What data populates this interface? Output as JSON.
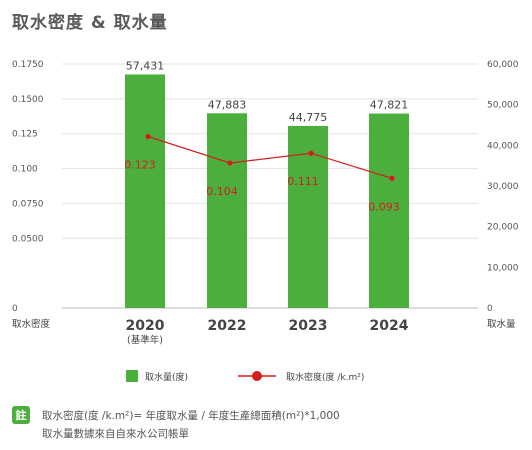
{
  "title": "取水密度 & 取水量",
  "chart_data": {
    "type": "bar+line",
    "categories": [
      "2020",
      "2022",
      "2023",
      "2024"
    ],
    "category_sublabels": [
      "(基準年)",
      "",
      "",
      ""
    ],
    "series": [
      {
        "name": "取水量(度)",
        "type": "bar",
        "axis": "right",
        "values": [
          57431,
          47883,
          44775,
          47821
        ],
        "labels": [
          "57,431",
          "47,883",
          "44,775",
          "47,821"
        ],
        "color": "#4caf3d"
      },
      {
        "name": "取水密度(度 /k.m²)",
        "type": "line",
        "axis": "left",
        "values": [
          0.123,
          0.104,
          0.111,
          0.093
        ],
        "labels": [
          "0.123",
          "0.104",
          "0.111",
          "0.093"
        ],
        "color": "#d11f1f"
      }
    ],
    "left_axis": {
      "label": "取水密度",
      "ylim": [
        0,
        0.175
      ],
      "ticks": [
        "0",
        "0.0500",
        "0.0750",
        "0.100",
        "0.125",
        "0.1500",
        "0.1750"
      ],
      "tick_values": [
        0,
        0.05,
        0.075,
        0.1,
        0.125,
        0.15,
        0.175
      ]
    },
    "right_axis": {
      "label": "取水量",
      "ylim": [
        0,
        60000
      ],
      "ticks": [
        "0",
        "10,000",
        "20,000",
        "30,000",
        "40,000",
        "50,000",
        "60,000"
      ],
      "tick_values": [
        0,
        10000,
        20000,
        30000,
        40000,
        50000,
        60000
      ]
    },
    "grid": true,
    "legend_position": "bottom"
  },
  "notes": {
    "badge": "註",
    "line1": "取水密度(度 /k.m²)= 年度取水量 / 年度生產總面積(m²)*1,000",
    "line2": "取水量數據來自自來水公司帳單"
  }
}
